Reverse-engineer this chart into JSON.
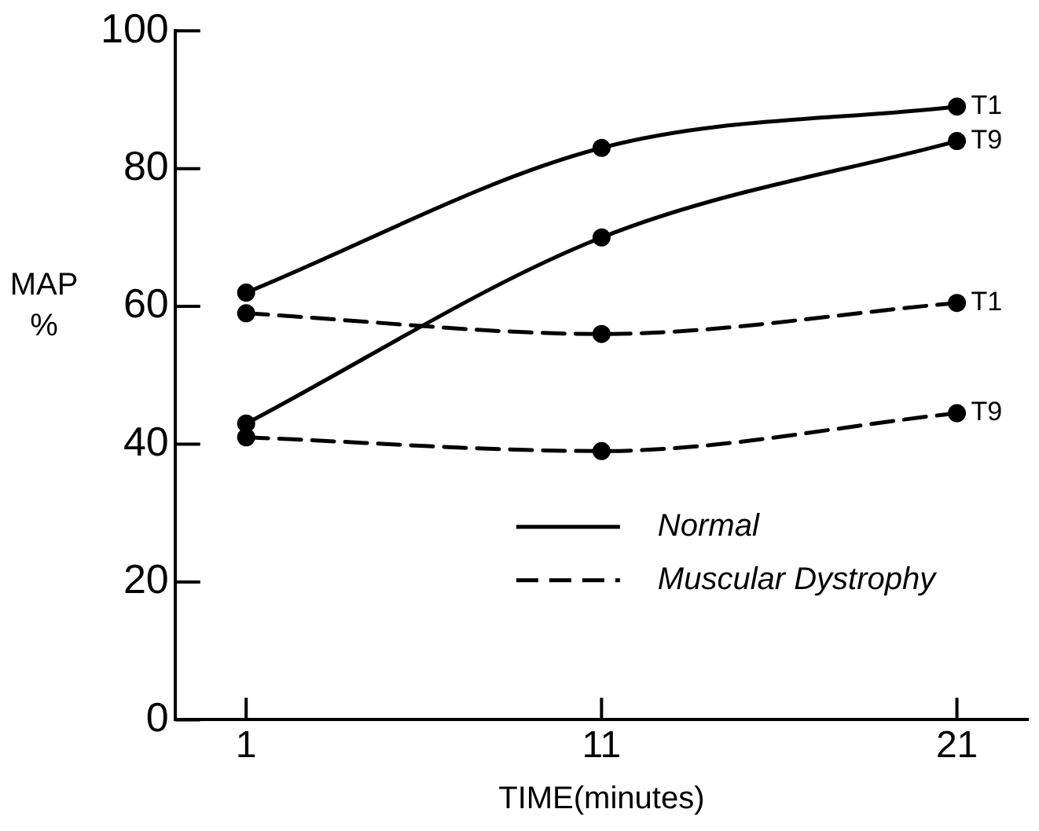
{
  "chart_data": {
    "type": "line",
    "xlabel": "TIME(minutes)",
    "ylabel": "MAP %",
    "xlim": [
      -1,
      23
    ],
    "xticks": [
      1,
      11,
      21
    ],
    "ylim": [
      0,
      100
    ],
    "yticks": [
      0,
      20,
      40,
      60,
      80,
      100
    ],
    "grid": false,
    "legend": "right",
    "marker": "circle",
    "series": [
      {
        "name": "T1",
        "color": "#000000",
        "line_style": "solid",
        "x": [
          1,
          11,
          21
        ],
        "values": [
          62,
          83,
          89
        ]
      },
      {
        "name": "T9",
        "color": "#000000",
        "line_style": "solid",
        "x": [
          1,
          11,
          21
        ],
        "values": [
          43,
          70,
          84
        ]
      },
      {
        "name": "T1",
        "color": "#000000",
        "line_style": "dashed",
        "x": [
          1,
          11,
          21
        ],
        "values": [
          59,
          56,
          60.5
        ]
      },
      {
        "name": "T9",
        "color": "#000000",
        "line_style": "dashed",
        "x": [
          1,
          11,
          21
        ],
        "values": [
          41,
          39,
          44.5
        ]
      }
    ],
    "annotations": [
      "Normal",
      "Muscular Dystrophy"
    ]
  }
}
